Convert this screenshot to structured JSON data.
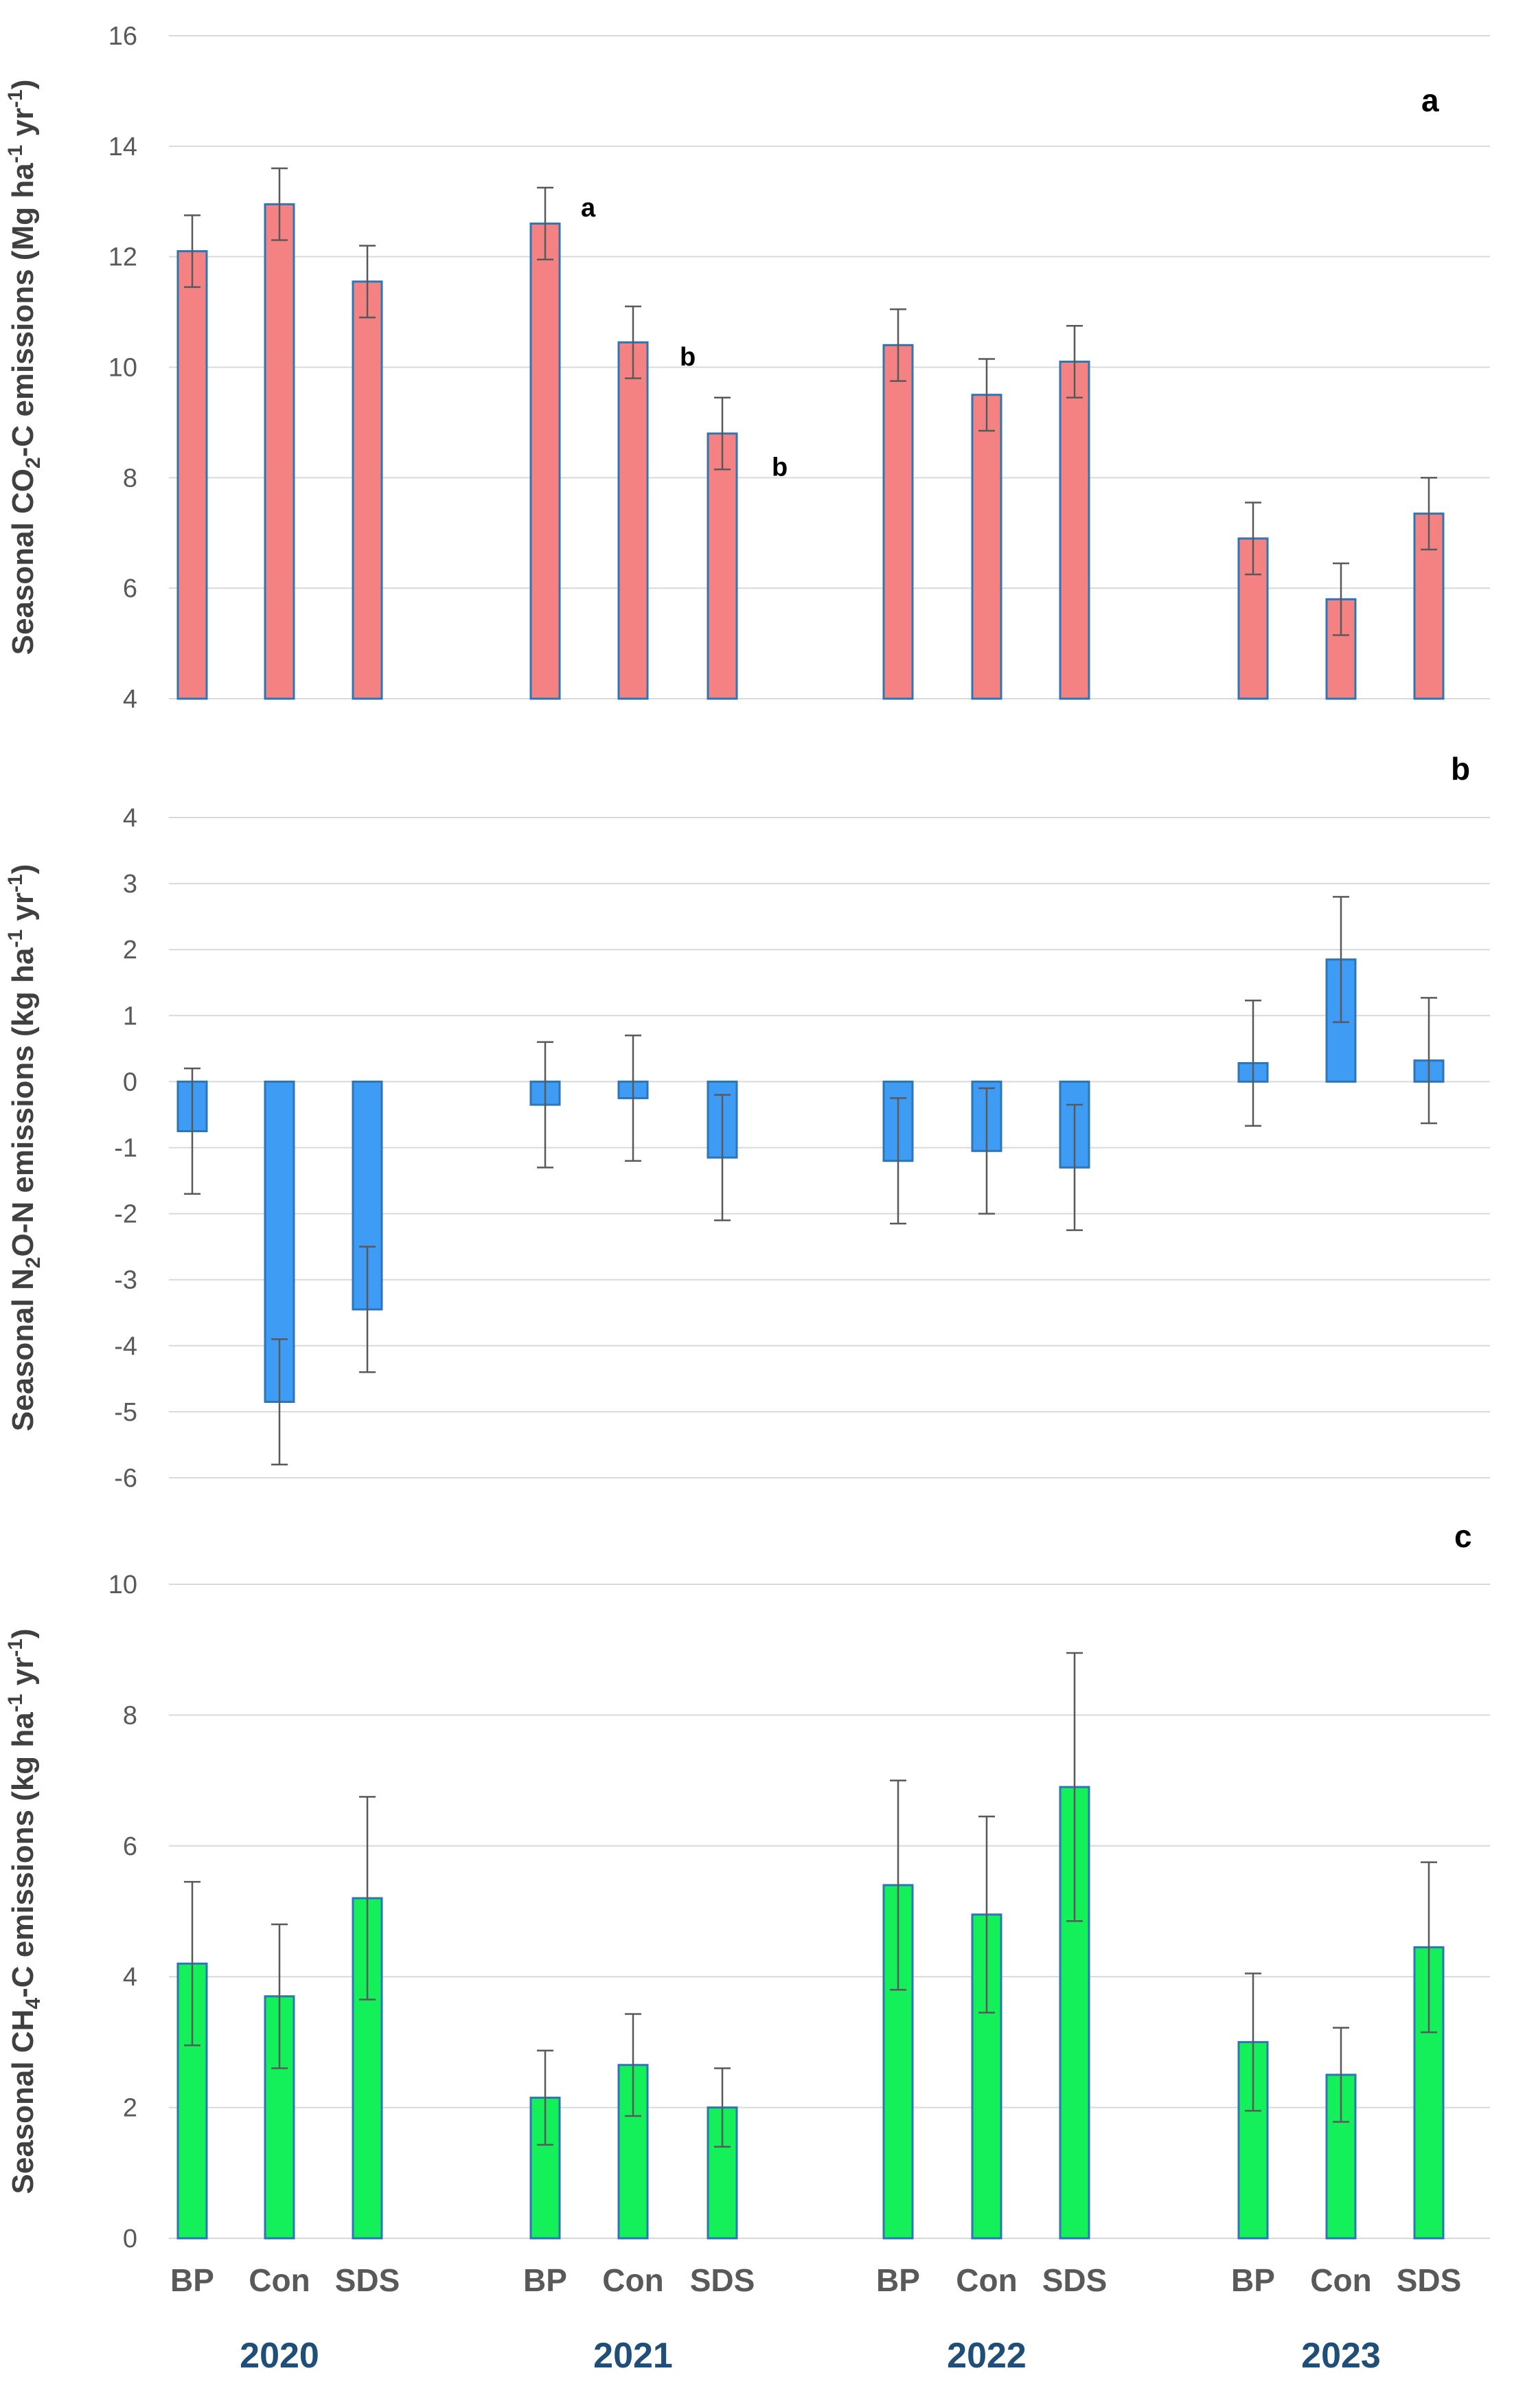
{
  "figure": {
    "groups": [
      "BP",
      "Con",
      "SDS"
    ],
    "years": [
      "2020",
      "2021",
      "2022",
      "2023"
    ]
  },
  "chart_data": [
    {
      "type": "bar",
      "panel": "a",
      "panel_label": "a",
      "ylabel_parts": [
        "Seasonal CO",
        "2",
        "-C emissions (Mg ha",
        "-1",
        " yr",
        "-1",
        ")"
      ],
      "ylim": [
        4,
        16
      ],
      "yticks": [
        4,
        6,
        8,
        10,
        12,
        14,
        16
      ],
      "color": "#f58282",
      "categories": [
        "2020 BP",
        "2020 Con",
        "2020 SDS",
        "2021 BP",
        "2021 Con",
        "2021 SDS",
        "2022 BP",
        "2022 Con",
        "2022 SDS",
        "2023 BP",
        "2023 Con",
        "2023 SDS"
      ],
      "values": [
        12.1,
        12.95,
        11.55,
        12.6,
        10.45,
        8.8,
        10.4,
        9.5,
        10.1,
        6.9,
        5.8,
        7.35
      ],
      "errors": [
        0.65,
        0.65,
        0.65,
        0.65,
        0.65,
        0.65,
        0.65,
        0.65,
        0.65,
        0.65,
        0.65,
        0.65
      ],
      "annotations": [
        {
          "index": 3,
          "text": "a"
        },
        {
          "index": 4,
          "text": "b"
        },
        {
          "index": 5,
          "text": "b"
        }
      ]
    },
    {
      "type": "bar",
      "panel": "b",
      "panel_label": "b",
      "ylabel_parts": [
        "Seasonal N",
        "2",
        "O-N emissions (kg ha",
        "-1",
        " yr",
        "-1",
        ")"
      ],
      "ylim": [
        -6,
        4
      ],
      "yticks": [
        -6,
        -5,
        -4,
        -3,
        -2,
        -1,
        0,
        1,
        2,
        3,
        4
      ],
      "color": "#3f9cf5",
      "categories": [
        "2020 BP",
        "2020 Con",
        "2020 SDS",
        "2021 BP",
        "2021 Con",
        "2021 SDS",
        "2022 BP",
        "2022 Con",
        "2022 SDS",
        "2023 BP",
        "2023 Con",
        "2023 SDS"
      ],
      "values": [
        -0.75,
        -4.85,
        -3.45,
        -0.35,
        -0.25,
        -1.15,
        -1.2,
        -1.05,
        -1.3,
        0.28,
        1.85,
        0.32
      ],
      "errors": [
        0.95,
        0.95,
        0.95,
        0.95,
        0.95,
        0.95,
        0.95,
        0.95,
        0.95,
        0.95,
        0.95,
        0.95
      ],
      "annotations": []
    },
    {
      "type": "bar",
      "panel": "c",
      "panel_label": "c",
      "ylabel_parts": [
        "Seasonal CH",
        "4",
        "-C emissions (kg ha",
        "-1",
        " yr",
        "-1",
        ")"
      ],
      "ylim": [
        0,
        10
      ],
      "yticks": [
        0,
        2,
        4,
        6,
        8,
        10
      ],
      "color": "#14f05a",
      "categories": [
        "2020 BP",
        "2020 Con",
        "2020 SDS",
        "2021 BP",
        "2021 Con",
        "2021 SDS",
        "2022 BP",
        "2022 Con",
        "2022 SDS",
        "2023 BP",
        "2023 Con",
        "2023 SDS"
      ],
      "values": [
        4.2,
        3.7,
        5.2,
        2.15,
        2.65,
        2.0,
        5.4,
        4.95,
        6.9,
        3.0,
        2.5,
        4.45
      ],
      "errors": [
        1.25,
        1.1,
        1.55,
        0.72,
        0.78,
        0.6,
        1.6,
        1.5,
        2.05,
        1.05,
        0.72,
        1.3
      ],
      "annotations": []
    }
  ]
}
